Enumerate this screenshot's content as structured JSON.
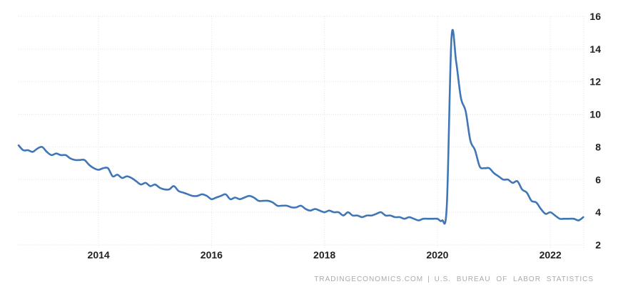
{
  "chart_data": {
    "type": "line",
    "title": "",
    "xlabel": "",
    "ylabel": "",
    "legend_position": "none",
    "grid": "dotted",
    "y_axis_side": "right",
    "xlim": [
      2012.583,
      2022.592
    ],
    "ylim": [
      2,
      16
    ],
    "x_ticks": [
      2014,
      2016,
      2018,
      2020,
      2022
    ],
    "x_tick_labels": [
      "2014",
      "2016",
      "2018",
      "2020",
      "2022"
    ],
    "y_ticks": [
      2,
      4,
      6,
      8,
      10,
      12,
      14,
      16
    ],
    "y_tick_labels": [
      "2",
      "4",
      "6",
      "8",
      "10",
      "12",
      "14",
      "16"
    ],
    "series": [
      {
        "id": "unemployment-rate",
        "color": "#3f76b6",
        "frequency": "monthly",
        "start_year": 2012,
        "start_month": 8,
        "values": [
          8.1,
          7.8,
          7.8,
          7.7,
          7.9,
          8.0,
          7.7,
          7.5,
          7.6,
          7.5,
          7.5,
          7.3,
          7.2,
          7.2,
          7.2,
          6.9,
          6.7,
          6.6,
          6.7,
          6.7,
          6.2,
          6.3,
          6.1,
          6.2,
          6.1,
          5.9,
          5.7,
          5.8,
          5.6,
          5.7,
          5.5,
          5.4,
          5.4,
          5.6,
          5.3,
          5.2,
          5.1,
          5.0,
          5.0,
          5.1,
          5.0,
          4.8,
          4.9,
          5.0,
          5.1,
          4.8,
          4.9,
          4.8,
          4.9,
          5.0,
          4.9,
          4.7,
          4.7,
          4.7,
          4.6,
          4.4,
          4.4,
          4.4,
          4.3,
          4.3,
          4.4,
          4.2,
          4.1,
          4.2,
          4.1,
          4.0,
          4.1,
          4.0,
          4.0,
          3.8,
          4.0,
          3.8,
          3.8,
          3.7,
          3.8,
          3.8,
          3.9,
          4.0,
          3.8,
          3.8,
          3.7,
          3.7,
          3.6,
          3.7,
          3.6,
          3.5,
          3.6,
          3.6,
          3.6,
          3.6,
          3.5,
          4.4,
          14.7,
          13.2,
          11.0,
          10.2,
          8.4,
          7.8,
          6.8,
          6.7,
          6.7,
          6.4,
          6.2,
          6.0,
          6.0,
          5.8,
          5.9,
          5.4,
          5.2,
          4.7,
          4.6,
          4.2,
          3.9,
          4.0,
          3.8,
          3.6,
          3.6,
          3.6,
          3.6,
          3.5,
          3.7
        ]
      }
    ]
  },
  "colors": {
    "line": "#3f76b6",
    "grid": "#e3e3e3",
    "axis_label": "#222222",
    "footer_text": "#aaaaaa",
    "background": "#ffffff"
  },
  "footer": {
    "left": "TRADINGECONOMICS.COM",
    "separator": "|",
    "right": "U.S. BUREAU OF LABOR STATISTICS"
  }
}
